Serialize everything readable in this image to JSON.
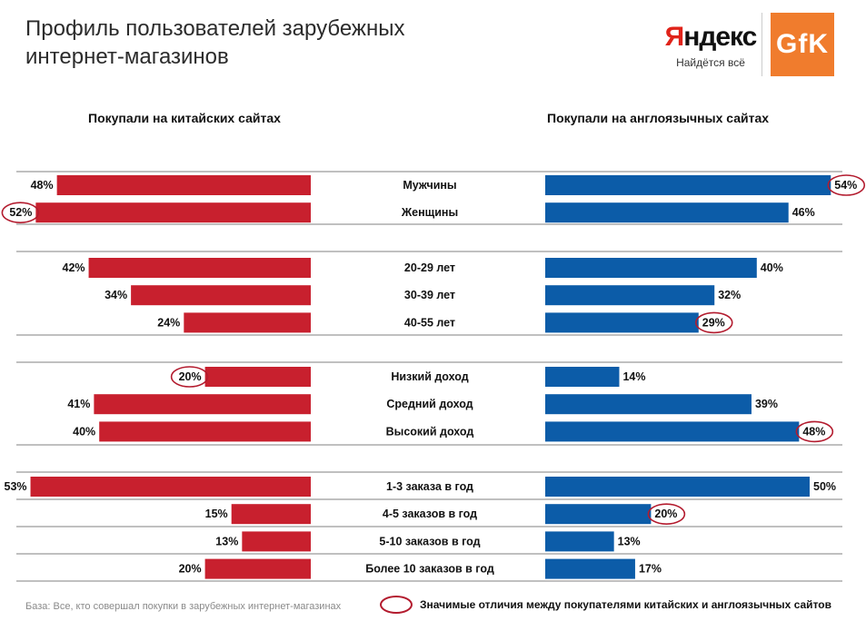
{
  "title_line1": "Профиль пользователей зарубежных",
  "title_line2": "интернет-магазинов",
  "logos": {
    "yandex_first": "Я",
    "yandex_rest": "ндекс",
    "yandex_tagline": "Найдётся всё",
    "gfk": "GfK"
  },
  "colors": {
    "china": "#c8202e",
    "english": "#0c5ca8",
    "circle": "#b31b2e",
    "divider": "#9a9a9a"
  },
  "chart_data": {
    "type": "bar",
    "orientation": "horizontal-mirrored",
    "left_title": "Покупали на китайских сайтах",
    "right_title": "Покупали на англоязычных сайтах",
    "unit": "%",
    "groups": [
      {
        "rows": [
          {
            "label": "Мужчины",
            "china": 48,
            "english": 54,
            "china_highlight": false,
            "english_highlight": true
          },
          {
            "label": "Женщины",
            "china": 52,
            "english": 46,
            "china_highlight": true,
            "english_highlight": false
          }
        ]
      },
      {
        "rows": [
          {
            "label": "20-29 лет",
            "china": 42,
            "english": 40,
            "china_highlight": false,
            "english_highlight": false
          },
          {
            "label": "30-39 лет",
            "china": 34,
            "english": 32,
            "china_highlight": false,
            "english_highlight": false
          },
          {
            "label": "40-55 лет",
            "china": 24,
            "english": 29,
            "china_highlight": false,
            "english_highlight": true
          }
        ]
      },
      {
        "rows": [
          {
            "label": "Низкий доход",
            "china": 20,
            "english": 14,
            "china_highlight": true,
            "english_highlight": false
          },
          {
            "label": "Средний доход",
            "china": 41,
            "english": 39,
            "china_highlight": false,
            "english_highlight": false
          },
          {
            "label": "Высокий доход",
            "china": 40,
            "english": 48,
            "china_highlight": false,
            "english_highlight": true
          }
        ]
      },
      {
        "rows": [
          {
            "label": "1-3 заказа в год",
            "china": 53,
            "english": 50,
            "china_highlight": false,
            "english_highlight": false
          },
          {
            "label": "4-5 заказов в год",
            "china": 15,
            "english": 20,
            "china_highlight": false,
            "english_highlight": true
          },
          {
            "label": "5-10 заказов в год",
            "china": 13,
            "english": 13,
            "china_highlight": false,
            "english_highlight": false
          },
          {
            "label": "Более 10 заказов в год",
            "china": 20,
            "english": 17,
            "china_highlight": false,
            "english_highlight": false
          }
        ]
      }
    ]
  },
  "footer_base": "База: Все, кто совершал покупки в зарубежных интернет-магазинах",
  "legend_text": "Значимые отличия между  покупателями китайских и англоязычных сайтов"
}
